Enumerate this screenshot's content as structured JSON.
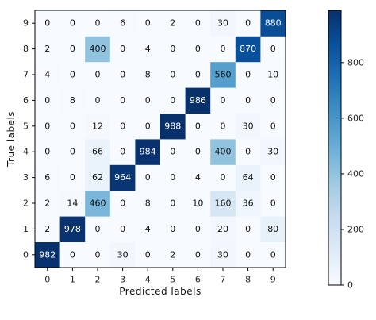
{
  "chart_data": {
    "type": "heatmap",
    "title": "",
    "xlabel": "Predicted labels",
    "ylabel": "True labels",
    "x_categories": [
      "0",
      "1",
      "2",
      "3",
      "4",
      "5",
      "6",
      "7",
      "8",
      "9"
    ],
    "y_categories": [
      "0",
      "1",
      "2",
      "3",
      "4",
      "5",
      "6",
      "7",
      "8",
      "9"
    ],
    "matrix": [
      [
        982,
        0,
        0,
        30,
        0,
        2,
        0,
        30,
        0,
        0
      ],
      [
        2,
        978,
        0,
        0,
        4,
        0,
        0,
        20,
        0,
        80
      ],
      [
        2,
        14,
        460,
        0,
        8,
        0,
        10,
        160,
        36,
        0
      ],
      [
        6,
        0,
        62,
        964,
        0,
        0,
        4,
        0,
        64,
        0
      ],
      [
        0,
        0,
        66,
        0,
        984,
        0,
        0,
        400,
        0,
        30
      ],
      [
        0,
        0,
        12,
        0,
        0,
        988,
        0,
        0,
        30,
        0
      ],
      [
        0,
        8,
        0,
        0,
        0,
        0,
        986,
        0,
        0,
        0
      ],
      [
        4,
        0,
        0,
        0,
        8,
        0,
        0,
        560,
        0,
        10
      ],
      [
        2,
        0,
        400,
        0,
        4,
        0,
        0,
        0,
        870,
        0
      ],
      [
        0,
        0,
        0,
        6,
        0,
        2,
        0,
        30,
        0,
        880
      ]
    ],
    "colormap": "Blues",
    "color_range": [
      0,
      988
    ],
    "colorbar_ticks": [
      "0",
      "200",
      "400",
      "600",
      "800"
    ],
    "colorbar_tick_values": [
      0,
      200,
      400,
      600,
      800
    ],
    "grid": false,
    "legend": "colorbar-right"
  }
}
